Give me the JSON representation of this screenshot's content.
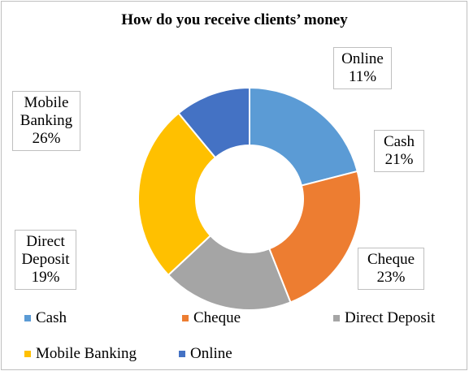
{
  "chart_data": {
    "type": "donut",
    "title": "How do you receive clients’ money",
    "categories": [
      "Cash",
      "Cheque",
      "Direct Deposit",
      "Mobile Banking",
      "Online"
    ],
    "values": [
      21,
      23,
      19,
      26,
      11
    ],
    "value_labels": [
      "21%",
      "23%",
      "19%",
      "26%",
      "11%"
    ],
    "colors": [
      "#5b9bd5",
      "#ed7d31",
      "#a5a5a5",
      "#ffc000",
      "#4472c4"
    ],
    "legend": "bottom"
  }
}
